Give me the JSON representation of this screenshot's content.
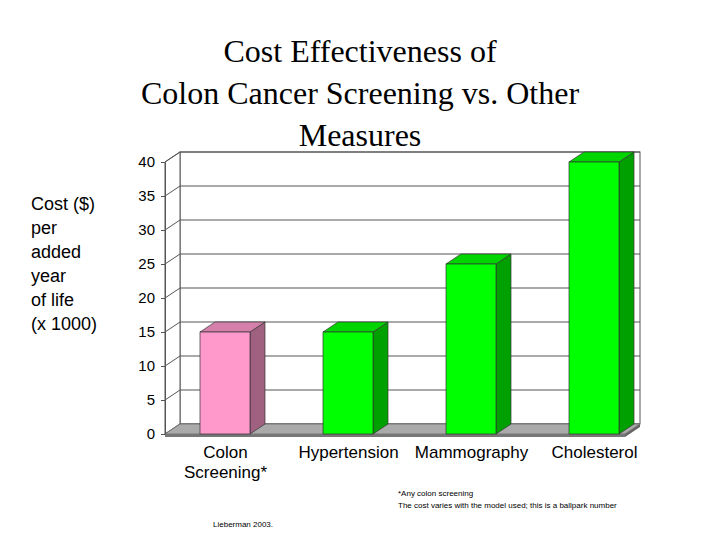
{
  "chart_data": {
    "type": "bar",
    "title": [
      "Cost Effectiveness of",
      "Colon Cancer Screening vs. Other",
      "Measures"
    ],
    "ylabel": [
      "Cost ($)",
      "per",
      "added",
      "year",
      "of life",
      "(x 1000)"
    ],
    "categories": [
      "Colon Screening*",
      "Hypertension",
      "Mammography",
      "Cholesterol"
    ],
    "values": [
      15,
      15,
      25,
      40
    ],
    "colors": [
      "#ff99cc",
      "#00ff00",
      "#00ff00",
      "#00ff00"
    ],
    "ylim": [
      0,
      40
    ],
    "yticks": [
      0,
      5,
      10,
      15,
      20,
      25,
      30,
      35,
      40
    ],
    "grid": true,
    "annotations": [
      "*Any colon screening",
      "The cost varies with the model used; this is a ballpark number",
      "Lieberman 2003."
    ]
  }
}
